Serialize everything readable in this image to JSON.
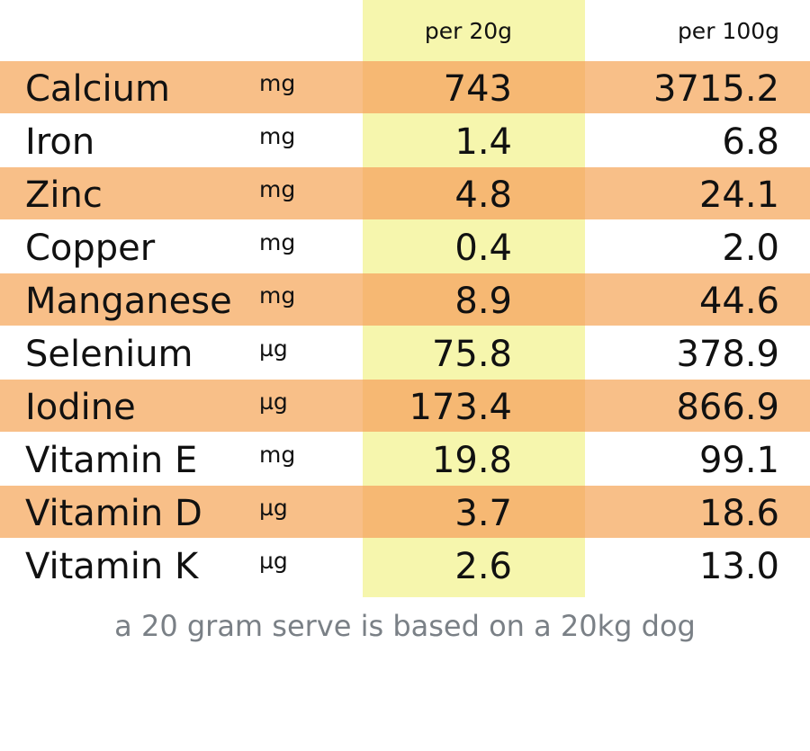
{
  "headers": {
    "col1": "per 20g",
    "col2": "per 100g"
  },
  "rows": [
    {
      "name": "Calcium",
      "unit": "mg",
      "per20": "743",
      "per100": "3715.2"
    },
    {
      "name": "Iron",
      "unit": "mg",
      "per20": "1.4",
      "per100": "6.8"
    },
    {
      "name": "Zinc",
      "unit": "mg",
      "per20": "4.8",
      "per100": "24.1"
    },
    {
      "name": "Copper",
      "unit": "mg",
      "per20": "0.4",
      "per100": "2.0"
    },
    {
      "name": "Manganese",
      "unit": "mg",
      "per20": "8.9",
      "per100": "44.6"
    },
    {
      "name": "Selenium",
      "unit": "µg",
      "per20": "75.8",
      "per100": "378.9"
    },
    {
      "name": "Iodine",
      "unit": "µg",
      "per20": "173.4",
      "per100": "866.9"
    },
    {
      "name": "Vitamin E",
      "unit": "mg",
      "per20": "19.8",
      "per100": "99.1"
    },
    {
      "name": "Vitamin D",
      "unit": "µg",
      "per20": "3.7",
      "per100": "18.6"
    },
    {
      "name": "Vitamin K",
      "unit": "µg",
      "per20": "2.6",
      "per100": "13.0"
    }
  ],
  "footnote": "a 20 gram serve is based on a 20kg dog",
  "colors": {
    "row_band": "#f8bf88",
    "row_band_highlight": "#f6b873",
    "column_highlight": "#f6f6ad",
    "footnote": "#7a8086"
  }
}
